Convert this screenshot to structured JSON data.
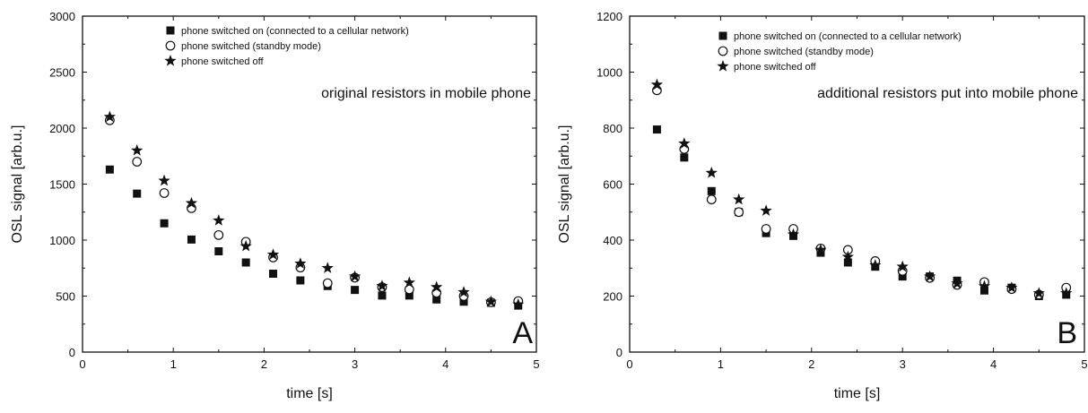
{
  "chart_data": [
    {
      "type": "scatter",
      "panel_label": "A",
      "annotation": "original resistors in mobile phone",
      "xlabel": "time [s]",
      "ylabel": "OSL signal [arb.u.]",
      "xlim": [
        0,
        5
      ],
      "ylim": [
        0,
        3000
      ],
      "xticks": [
        0,
        1,
        2,
        3,
        4,
        5
      ],
      "yticks": [
        0,
        500,
        1000,
        1500,
        2000,
        2500,
        3000
      ],
      "legend_position": "top-right",
      "grid": false,
      "series": [
        {
          "name": "phone switched on (connected to a cellular network)",
          "marker": "square",
          "x": [
            0.3,
            0.6,
            0.9,
            1.2,
            1.5,
            1.8,
            2.1,
            2.4,
            2.7,
            3.0,
            3.3,
            3.6,
            3.9,
            4.2,
            4.5,
            4.8
          ],
          "y": [
            1630,
            1415,
            1150,
            1005,
            900,
            800,
            700,
            640,
            590,
            555,
            505,
            505,
            470,
            450,
            440,
            415
          ]
        },
        {
          "name": "phone switched (standby mode)",
          "marker": "circle",
          "x": [
            0.3,
            0.6,
            0.9,
            1.2,
            1.5,
            1.8,
            2.1,
            2.4,
            2.7,
            3.0,
            3.3,
            3.6,
            3.9,
            4.2,
            4.5,
            4.8
          ],
          "y": [
            2070,
            1700,
            1420,
            1285,
            1045,
            985,
            845,
            755,
            615,
            665,
            580,
            560,
            530,
            500,
            445,
            455
          ]
        },
        {
          "name": "phone switched off",
          "marker": "star",
          "x": [
            0.3,
            0.6,
            0.9,
            1.2,
            1.5,
            1.8,
            2.1,
            2.4,
            2.7,
            3.0,
            3.3,
            3.6,
            3.9,
            4.2,
            4.5,
            4.8
          ],
          "y": [
            2100,
            1800,
            1530,
            1330,
            1175,
            945,
            870,
            790,
            750,
            675,
            590,
            620,
            580,
            535,
            450,
            425
          ]
        }
      ]
    },
    {
      "type": "scatter",
      "panel_label": "B",
      "annotation": "additional resistors put into mobile phone",
      "xlabel": "time [s]",
      "ylabel": "OSL signal [arb.u.]",
      "xlim": [
        0,
        5
      ],
      "ylim": [
        0,
        1200
      ],
      "xticks": [
        0,
        1,
        2,
        3,
        4,
        5
      ],
      "yticks": [
        0,
        200,
        400,
        600,
        800,
        1000,
        1200
      ],
      "legend_position": "top-right",
      "grid": false,
      "series": [
        {
          "name": "phone switched on (connected to a cellular network)",
          "marker": "square",
          "x": [
            0.3,
            0.6,
            0.9,
            1.2,
            1.5,
            1.8,
            2.1,
            2.4,
            2.7,
            3.0,
            3.3,
            3.6,
            3.9,
            4.2,
            4.5,
            4.8
          ],
          "y": [
            795,
            695,
            575,
            500,
            425,
            415,
            355,
            320,
            305,
            270,
            270,
            255,
            220,
            230,
            200,
            205
          ]
        },
        {
          "name": "phone switched (standby mode)",
          "marker": "circle",
          "x": [
            0.3,
            0.6,
            0.9,
            1.2,
            1.5,
            1.8,
            2.1,
            2.4,
            2.7,
            3.0,
            3.3,
            3.6,
            3.9,
            4.2,
            4.5,
            4.8
          ],
          "y": [
            935,
            725,
            545,
            500,
            440,
            440,
            370,
            365,
            325,
            290,
            265,
            240,
            250,
            225,
            205,
            230
          ]
        },
        {
          "name": "phone switched off",
          "marker": "star",
          "x": [
            0.3,
            0.6,
            0.9,
            1.2,
            1.5,
            1.8,
            2.1,
            2.4,
            2.7,
            3.0,
            3.3,
            3.6,
            3.9,
            4.2,
            4.5,
            4.8
          ],
          "y": [
            955,
            745,
            640,
            545,
            505,
            420,
            365,
            340,
            310,
            305,
            270,
            245,
            235,
            230,
            210,
            210
          ]
        }
      ]
    }
  ]
}
